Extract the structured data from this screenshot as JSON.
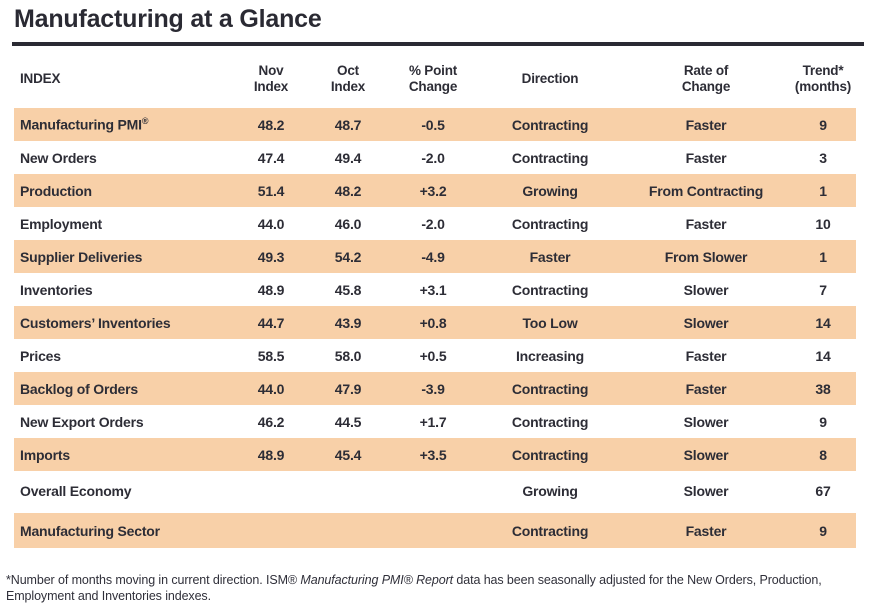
{
  "title": "Manufacturing at a Glance",
  "table": {
    "columns": [
      {
        "line1": "INDEX"
      },
      {
        "line1": "Nov",
        "line2": "Index"
      },
      {
        "line1": "Oct",
        "line2": "Index"
      },
      {
        "line1": "% Point",
        "line2": "Change"
      },
      {
        "line1": "Direction"
      },
      {
        "line1": "Rate of",
        "line2": "Change"
      },
      {
        "line1": "Trend*",
        "line2": "(months)"
      }
    ],
    "rows": [
      {
        "index": "Manufacturing PMI",
        "index_sup": "®",
        "nov": "48.2",
        "oct": "48.7",
        "change": "-0.5",
        "direction": "Contracting",
        "rate": "Faster",
        "trend": "9"
      },
      {
        "index": "New Orders",
        "nov": "47.4",
        "oct": "49.4",
        "change": "-2.0",
        "direction": "Contracting",
        "rate": "Faster",
        "trend": "3"
      },
      {
        "index": "Production",
        "nov": "51.4",
        "oct": "48.2",
        "change": "+3.2",
        "direction": "Growing",
        "rate": "From Contracting",
        "trend": "1"
      },
      {
        "index": "Employment",
        "nov": "44.0",
        "oct": "46.0",
        "change": "-2.0",
        "direction": "Contracting",
        "rate": "Faster",
        "trend": "10"
      },
      {
        "index": "Supplier Deliveries",
        "nov": "49.3",
        "oct": "54.2",
        "change": "-4.9",
        "direction": "Faster",
        "rate": "From Slower",
        "trend": "1"
      },
      {
        "index": "Inventories",
        "nov": "48.9",
        "oct": "45.8",
        "change": "+3.1",
        "direction": "Contracting",
        "rate": "Slower",
        "trend": "7"
      },
      {
        "index": "Customers’ Inventories",
        "nov": "44.7",
        "oct": "43.9",
        "change": "+0.8",
        "direction": "Too Low",
        "rate": "Slower",
        "trend": "14"
      },
      {
        "index": "Prices",
        "nov": "58.5",
        "oct": "58.0",
        "change": "+0.5",
        "direction": "Increasing",
        "rate": "Faster",
        "trend": "14"
      },
      {
        "index": "Backlog of Orders",
        "nov": "44.0",
        "oct": "47.9",
        "change": "-3.9",
        "direction": "Contracting",
        "rate": "Faster",
        "trend": "38"
      },
      {
        "index": "New Export Orders",
        "nov": "46.2",
        "oct": "44.5",
        "change": "+1.7",
        "direction": "Contracting",
        "rate": "Slower",
        "trend": "9"
      },
      {
        "index": "Imports",
        "nov": "48.9",
        "oct": "45.4",
        "change": "+3.5",
        "direction": "Contracting",
        "rate": "Slower",
        "trend": "8"
      }
    ],
    "summary_rows": [
      {
        "index": "Overall Economy",
        "direction": "Growing",
        "rate": "Slower",
        "trend": "67"
      },
      {
        "index": "Manufacturing Sector",
        "direction": "Contracting",
        "rate": "Faster",
        "trend": "9"
      }
    ]
  },
  "footnote": {
    "pre": "*Number of months moving in current direction. ISM® ",
    "italic": "Manufacturing PMI® Report",
    "post": " data has been seasonally adjusted for the New Orders, Production, Employment and Inventories indexes."
  },
  "colors": {
    "stripe_peach": "#f8d0a8",
    "text_dark": "#2a2a33"
  }
}
